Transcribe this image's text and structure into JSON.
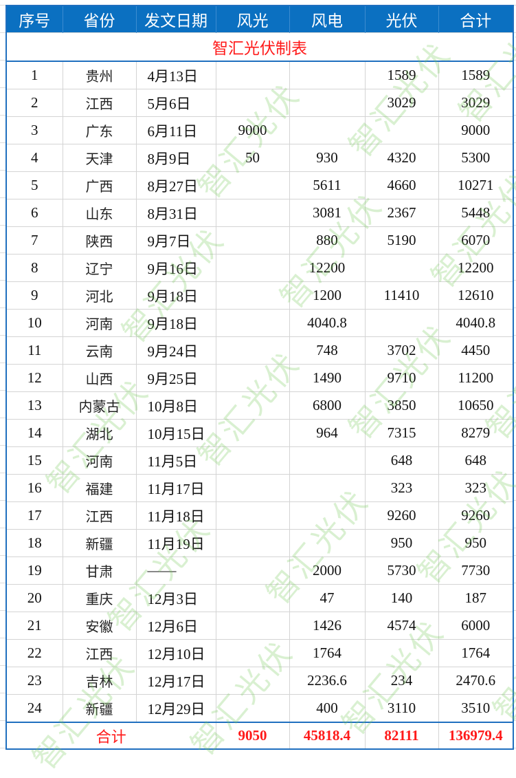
{
  "header": [
    "序号",
    "省份",
    "发文日期",
    "风光",
    "风电",
    "光伏",
    "合计"
  ],
  "title": "智汇光伏制表",
  "rows": [
    [
      "1",
      "贵州",
      "4月13日",
      "",
      "",
      "1589",
      "1589"
    ],
    [
      "2",
      "江西",
      "5月6日",
      "",
      "",
      "3029",
      "3029"
    ],
    [
      "3",
      "广东",
      "6月11日",
      "9000",
      "",
      "",
      "9000"
    ],
    [
      "4",
      "天津",
      "8月9日",
      "50",
      "930",
      "4320",
      "5300"
    ],
    [
      "5",
      "广西",
      "8月27日",
      "",
      "5611",
      "4660",
      "10271"
    ],
    [
      "6",
      "山东",
      "8月31日",
      "",
      "3081",
      "2367",
      "5448"
    ],
    [
      "7",
      "陕西",
      "9月7日",
      "",
      "880",
      "5190",
      "6070"
    ],
    [
      "8",
      "辽宁",
      "9月16日",
      "",
      "12200",
      "",
      "12200"
    ],
    [
      "9",
      "河北",
      "9月18日",
      "",
      "1200",
      "11410",
      "12610"
    ],
    [
      "10",
      "河南",
      "9月18日",
      "",
      "4040.8",
      "",
      "4040.8"
    ],
    [
      "11",
      "云南",
      "9月24日",
      "",
      "748",
      "3702",
      "4450"
    ],
    [
      "12",
      "山西",
      "9月25日",
      "",
      "1490",
      "9710",
      "11200"
    ],
    [
      "13",
      "内蒙古",
      "10月8日",
      "",
      "6800",
      "3850",
      "10650"
    ],
    [
      "14",
      "湖北",
      "10月15日",
      "",
      "964",
      "7315",
      "8279"
    ],
    [
      "15",
      "河南",
      "11月5日",
      "",
      "",
      "648",
      "648"
    ],
    [
      "16",
      "福建",
      "11月17日",
      "",
      "",
      "323",
      "323"
    ],
    [
      "17",
      "江西",
      "11月18日",
      "",
      "",
      "9260",
      "9260"
    ],
    [
      "18",
      "新疆",
      "11月19日",
      "",
      "",
      "950",
      "950"
    ],
    [
      "19",
      "甘肃",
      "——",
      "",
      "2000",
      "5730",
      "7730"
    ],
    [
      "20",
      "重庆",
      "12月3日",
      "",
      "47",
      "140",
      "187"
    ],
    [
      "21",
      "安徽",
      "12月6日",
      "",
      "1426",
      "4574",
      "6000"
    ],
    [
      "22",
      "江西",
      "12月10日",
      "",
      "1764",
      "",
      "1764"
    ],
    [
      "23",
      "吉林",
      "12月17日",
      "",
      "2236.6",
      "234",
      "2470.6"
    ],
    [
      "24",
      "新疆",
      "12月29日",
      "",
      "400",
      "3110",
      "3510"
    ]
  ],
  "total": {
    "label": "合计",
    "values": [
      "9050",
      "45818.4",
      "82111",
      "136979.4"
    ]
  },
  "watermark": "智汇光伏",
  "colors": {
    "header_bg": "#0b70c1",
    "accent_red": "#ff1a1a",
    "border": "#1f6fbf",
    "watermark": "#78c85a"
  }
}
